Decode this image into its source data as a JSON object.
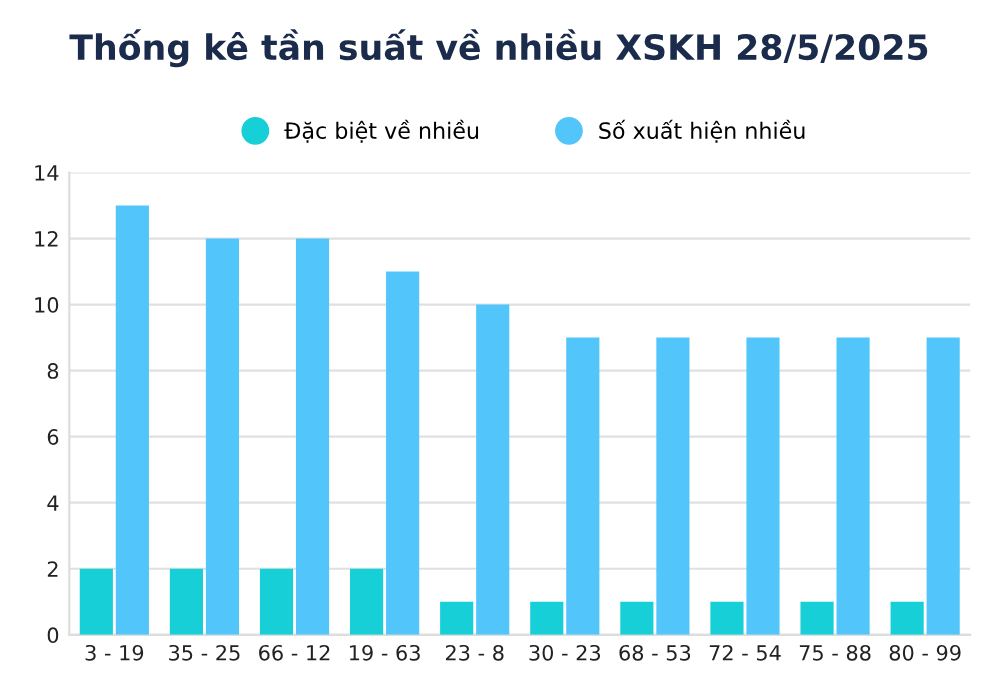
{
  "chart_data": {
    "type": "bar",
    "title": "Thống kê tần suất về nhiều XSKH 28/5/2025",
    "categories": [
      "3 - 19",
      "35 - 25",
      "66 - 12",
      "19 - 63",
      "23 - 8",
      "30 - 23",
      "68 - 53",
      "72 - 54",
      "75 - 88",
      "80 - 99"
    ],
    "series": [
      {
        "name": "Đặc biệt về nhiều",
        "color": "#17cfd6",
        "values": [
          2,
          2,
          2,
          2,
          1,
          1,
          1,
          1,
          1,
          1
        ]
      },
      {
        "name": "Số xuất hiện nhiều",
        "color": "#52c5fa",
        "values": [
          13,
          12,
          12,
          11,
          10,
          9,
          9,
          9,
          9,
          9
        ]
      }
    ],
    "ylim": [
      0,
      14
    ],
    "yticks": [
      0,
      2,
      4,
      6,
      8,
      10,
      12,
      14
    ],
    "grid": "y",
    "legend": "top"
  }
}
